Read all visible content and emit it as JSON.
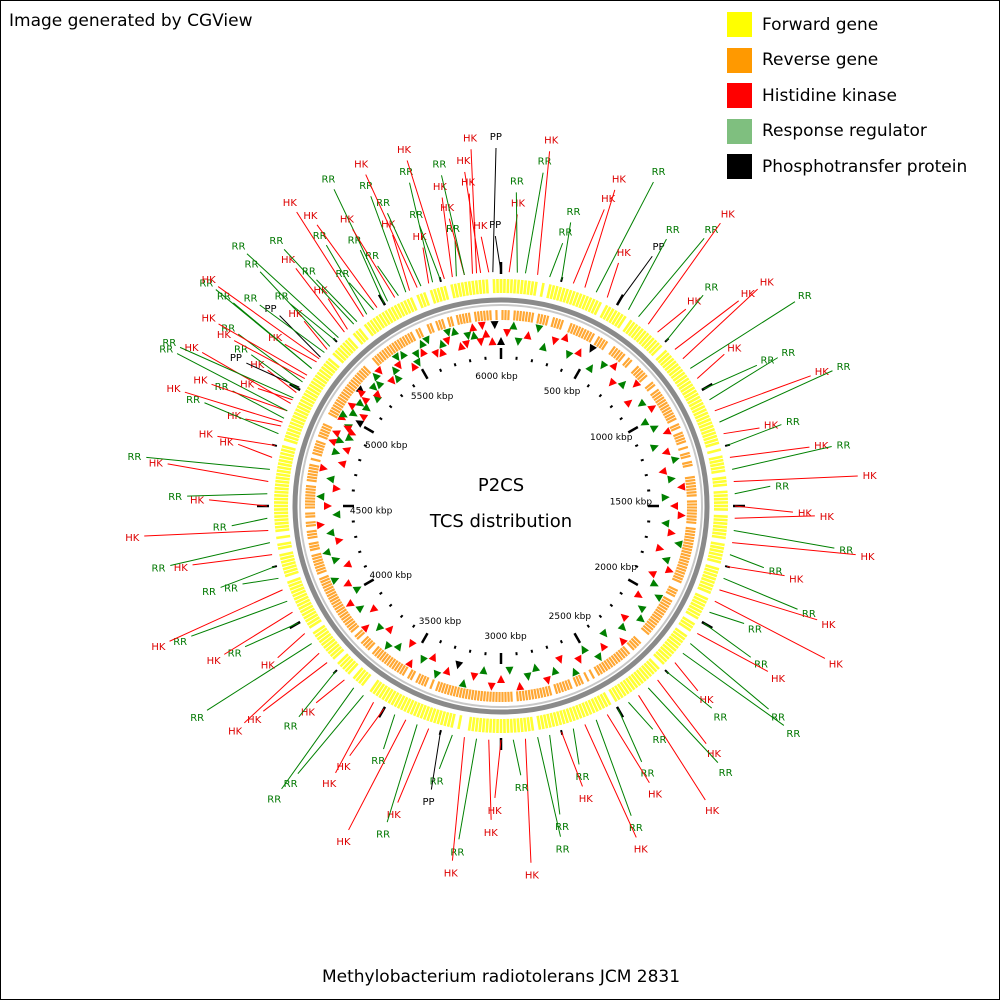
{
  "credit": "Image generated by CGView",
  "caption": "Methylobacterium radiotolerans JCM 2831",
  "center": {
    "title": "P2CS",
    "subtitle": "TCS distribution"
  },
  "legend": [
    {
      "label": "Forward gene",
      "color": "#ffff00"
    },
    {
      "label": "Reverse gene",
      "color": "#ff9900"
    },
    {
      "label": "Histidine kinase",
      "color": "#ff0000"
    },
    {
      "label": "Response regulator",
      "color": "#7fbf7f"
    },
    {
      "label": "Phosphotransfer protein",
      "color": "#000000"
    }
  ],
  "colors": {
    "histidine_kinase_label": "#dd0000",
    "response_regulator_label": "#007700",
    "backbone": "#888888"
  },
  "tick_labels": [
    "500 kbp",
    "1000 kbp",
    "1500 kbp",
    "2000 kbp",
    "2500 kbp",
    "3000 kbp",
    "3500 kbp",
    "4000 kbp",
    "4500 kbp",
    "5000 kbp",
    "5500 kbp",
    "6000 kbp"
  ],
  "feature_labels": [
    {
      "t": "HK",
      "kind": "HK",
      "deg": -70
    },
    {
      "t": "RR",
      "kind": "RR",
      "deg": -68
    },
    {
      "t": "HK",
      "kind": "HK",
      "deg": -66
    },
    {
      "t": "HK",
      "kind": "HK",
      "deg": -64
    },
    {
      "t": "RR",
      "kind": "RR",
      "deg": -62.5
    },
    {
      "t": "HK",
      "kind": "HK",
      "deg": -61
    },
    {
      "t": "PP",
      "kind": "PP",
      "deg": -59.5
    },
    {
      "t": "RR",
      "kind": "RR",
      "deg": -58
    },
    {
      "t": "HK",
      "kind": "HK",
      "deg": -56
    },
    {
      "t": "RR",
      "kind": "RR",
      "deg": -54
    },
    {
      "t": "HK",
      "kind": "HK",
      "deg": -52
    },
    {
      "t": "PP",
      "kind": "PP",
      "deg": -50.5
    },
    {
      "t": "RR",
      "kind": "RR",
      "deg": -49
    },
    {
      "t": "RR",
      "kind": "RR",
      "deg": -47
    },
    {
      "t": "RR",
      "kind": "RR",
      "deg": -44
    },
    {
      "t": "HK",
      "kind": "HK",
      "deg": -41
    },
    {
      "t": "RR",
      "kind": "RR",
      "deg": -38
    },
    {
      "t": "RR",
      "kind": "RR",
      "deg": -35
    },
    {
      "t": "HK",
      "kind": "HK",
      "deg": -32
    },
    {
      "t": "RR",
      "kind": "RR",
      "deg": -29
    },
    {
      "t": "RR",
      "kind": "RR",
      "deg": -26
    },
    {
      "t": "HK",
      "kind": "HK",
      "deg": -23
    },
    {
      "t": "RR",
      "kind": "RR",
      "deg": -20
    },
    {
      "t": "RR",
      "kind": "RR",
      "deg": -17
    },
    {
      "t": "HK",
      "kind": "HK",
      "deg": -14
    },
    {
      "t": "RR",
      "kind": "RR",
      "deg": -11
    },
    {
      "t": "HK",
      "kind": "HK",
      "deg": -9
    },
    {
      "t": "HK",
      "kind": "HK",
      "deg": -7
    },
    {
      "t": "HK",
      "kind": "HK",
      "deg": -5
    },
    {
      "t": "PP",
      "kind": "PP",
      "deg": -2
    },
    {
      "t": "PP",
      "kind": "PP",
      "deg": 0
    },
    {
      "t": "HK",
      "kind": "HK",
      "deg": 2
    },
    {
      "t": "RR",
      "kind": "RR",
      "deg": 4
    },
    {
      "t": "RR",
      "kind": "RR",
      "deg": 6
    },
    {
      "t": "HK",
      "kind": "HK",
      "deg": 9
    },
    {
      "t": "RR",
      "kind": "RR",
      "deg": 12
    },
    {
      "t": "RR",
      "kind": "RR",
      "deg": 15
    },
    {
      "t": "HK",
      "kind": "HK",
      "deg": 18
    },
    {
      "t": "HK",
      "kind": "HK",
      "deg": 21
    },
    {
      "t": "RR",
      "kind": "RR",
      "deg": 24
    },
    {
      "t": "HK",
      "kind": "HK",
      "deg": 27
    },
    {
      "t": "PP",
      "kind": "PP",
      "deg": 30
    },
    {
      "t": "RR",
      "kind": "RR",
      "deg": 33
    },
    {
      "t": "RR",
      "kind": "RR",
      "deg": 36
    },
    {
      "t": "HK",
      "kind": "HK",
      "deg": 39
    },
    {
      "t": "HK",
      "kind": "HK",
      "deg": 42
    },
    {
      "t": "RR",
      "kind": "RR",
      "deg": 45
    },
    {
      "t": "HK",
      "kind": "HK",
      "deg": 48
    },
    {
      "t": "HK",
      "kind": "HK",
      "deg": 51
    },
    {
      "t": "RR",
      "kind": "RR",
      "deg": 54
    },
    {
      "t": "HK",
      "kind": "HK",
      "deg": 57
    },
    {
      "t": "RR",
      "kind": "RR",
      "deg": 60
    },
    {
      "t": "RR",
      "kind": "RR",
      "deg": 63
    },
    {
      "t": "HK",
      "kind": "HK",
      "deg": 66
    },
    {
      "t": "RR",
      "kind": "RR",
      "deg": 69
    },
    {
      "t": "HK",
      "kind": "HK",
      "deg": 72
    },
    {
      "t": "RR",
      "kind": "RR",
      "deg": 75
    },
    {
      "t": "HK",
      "kind": "HK",
      "deg": 78
    },
    {
      "t": "RR",
      "kind": "RR",
      "deg": 81
    },
    {
      "t": "HK",
      "kind": "HK",
      "deg": 84
    },
    {
      "t": "RR",
      "kind": "RR",
      "deg": 87
    },
    {
      "t": "HK",
      "kind": "HK",
      "deg": 90
    },
    {
      "t": "HK",
      "kind": "HK",
      "deg": 93
    },
    {
      "t": "RR",
      "kind": "RR",
      "deg": 96
    },
    {
      "t": "HK",
      "kind": "HK",
      "deg": 99
    },
    {
      "t": "RR",
      "kind": "RR",
      "deg": 102
    },
    {
      "t": "HK",
      "kind": "HK",
      "deg": 105
    },
    {
      "t": "RR",
      "kind": "RR",
      "deg": 108
    },
    {
      "t": "HK",
      "kind": "HK",
      "deg": 111
    },
    {
      "t": "HK",
      "kind": "HK",
      "deg": 114
    },
    {
      "t": "RR",
      "kind": "RR",
      "deg": 117
    },
    {
      "t": "RR",
      "kind": "RR",
      "deg": 120
    },
    {
      "t": "HK",
      "kind": "HK",
      "deg": 123
    },
    {
      "t": "RR",
      "kind": "RR",
      "deg": 126
    },
    {
      "t": "RR",
      "kind": "RR",
      "deg": 129
    },
    {
      "t": "HK",
      "kind": "HK",
      "deg": 132
    },
    {
      "t": "RR",
      "kind": "RR",
      "deg": 135
    },
    {
      "t": "HK",
      "kind": "HK",
      "deg": 138
    },
    {
      "t": "RR",
      "kind": "RR",
      "deg": 141
    },
    {
      "t": "HK",
      "kind": "HK",
      "deg": 144
    },
    {
      "t": "RR",
      "kind": "RR",
      "deg": 147
    },
    {
      "t": "RR",
      "kind": "RR",
      "deg": 150
    },
    {
      "t": "HK",
      "kind": "HK",
      "deg": 153
    },
    {
      "t": "RR",
      "kind": "RR",
      "deg": 156
    },
    {
      "t": "HK",
      "kind": "HK",
      "deg": 159
    },
    {
      "t": "RR",
      "kind": "RR",
      "deg": 162
    },
    {
      "t": "HK",
      "kind": "HK",
      "deg": 165
    },
    {
      "t": "RR",
      "kind": "RR",
      "deg": 168
    },
    {
      "t": "RR",
      "kind": "RR",
      "deg": 171
    },
    {
      "t": "HK",
      "kind": "HK",
      "deg": 174
    },
    {
      "t": "RR",
      "kind": "RR",
      "deg": 177
    },
    {
      "t": "HK",
      "kind": "HK",
      "deg": 180
    },
    {
      "t": "HK",
      "kind": "HK",
      "deg": 183
    },
    {
      "t": "RR",
      "kind": "RR",
      "deg": 186
    },
    {
      "t": "HK",
      "kind": "HK",
      "deg": 189
    },
    {
      "t": "RR",
      "kind": "RR",
      "deg": 192
    },
    {
      "t": "PP",
      "kind": "PP",
      "deg": 195
    },
    {
      "t": "HK",
      "kind": "HK",
      "deg": 198
    },
    {
      "t": "RR",
      "kind": "RR",
      "deg": 201
    },
    {
      "t": "HK",
      "kind": "HK",
      "deg": 204
    },
    {
      "t": "RR",
      "kind": "RR",
      "deg": 207
    },
    {
      "t": "HK",
      "kind": "HK",
      "deg": 210
    },
    {
      "t": "HK",
      "kind": "HK",
      "deg": 213
    },
    {
      "t": "RR",
      "kind": "RR",
      "deg": 216
    },
    {
      "t": "RR",
      "kind": "RR",
      "deg": 219
    },
    {
      "t": "HK",
      "kind": "HK",
      "deg": 222
    },
    {
      "t": "RR",
      "kind": "RR",
      "deg": 225
    },
    {
      "t": "HK",
      "kind": "HK",
      "deg": 228
    },
    {
      "t": "HK",
      "kind": "HK",
      "deg": 231
    },
    {
      "t": "RR",
      "kind": "RR",
      "deg": 234
    },
    {
      "t": "HK",
      "kind": "HK",
      "deg": 237
    },
    {
      "t": "RR",
      "kind": "RR",
      "deg": 240
    },
    {
      "t": "HK",
      "kind": "HK",
      "deg": 243
    },
    {
      "t": "RR",
      "kind": "RR",
      "deg": 246
    },
    {
      "t": "HK",
      "kind": "HK",
      "deg": 249
    },
    {
      "t": "RR",
      "kind": "RR",
      "deg": 252
    },
    {
      "t": "RR",
      "kind": "RR",
      "deg": 255
    },
    {
      "t": "HK",
      "kind": "HK",
      "deg": 258
    },
    {
      "t": "RR",
      "kind": "RR",
      "deg": 261
    },
    {
      "t": "HK",
      "kind": "HK",
      "deg": 264
    },
    {
      "t": "RR",
      "kind": "RR",
      "deg": 267
    },
    {
      "t": "HK",
      "kind": "HK",
      "deg": 270
    },
    {
      "t": "RR",
      "kind": "RR",
      "deg": 273
    },
    {
      "t": "HK",
      "kind": "HK",
      "deg": 276
    },
    {
      "t": "RR",
      "kind": "RR",
      "deg": 279
    },
    {
      "t": "HK",
      "kind": "HK",
      "deg": 282
    },
    {
      "t": "HK",
      "kind": "HK",
      "deg": 285
    },
    {
      "t": "RR",
      "kind": "RR",
      "deg": 288
    },
    {
      "t": "HK",
      "kind": "HK",
      "deg": 291
    },
    {
      "t": "RR",
      "kind": "RR",
      "deg": 294
    },
    {
      "t": "HK",
      "kind": "HK",
      "deg": 297
    },
    {
      "t": "RR",
      "kind": "RR",
      "deg": 300
    },
    {
      "t": "HK",
      "kind": "HK",
      "deg": 303
    },
    {
      "t": "RR",
      "kind": "RR",
      "deg": 306
    },
    {
      "t": "HK",
      "kind": "HK",
      "deg": 309
    },
    {
      "t": "HK",
      "kind": "HK",
      "deg": 312
    },
    {
      "t": "RR",
      "kind": "RR",
      "deg": 315
    },
    {
      "t": "HK",
      "kind": "HK",
      "deg": 318
    },
    {
      "t": "RR",
      "kind": "RR",
      "deg": 321
    },
    {
      "t": "HK",
      "kind": "HK",
      "deg": 324
    },
    {
      "t": "RR",
      "kind": "RR",
      "deg": 327
    },
    {
      "t": "RR",
      "kind": "RR",
      "deg": 330
    },
    {
      "t": "HK",
      "kind": "HK",
      "deg": 333
    },
    {
      "t": "RR",
      "kind": "RR",
      "deg": 336
    },
    {
      "t": "HK",
      "kind": "HK",
      "deg": 339
    },
    {
      "t": "HK",
      "kind": "HK",
      "deg": 342
    },
    {
      "t": "RR",
      "kind": "RR",
      "deg": 345
    },
    {
      "t": "HK",
      "kind": "HK",
      "deg": 348
    },
    {
      "t": "RR",
      "kind": "RR",
      "deg": 351
    },
    {
      "t": "HK",
      "kind": "HK",
      "deg": 354
    },
    {
      "t": "HK",
      "kind": "HK",
      "deg": 357
    }
  ]
}
